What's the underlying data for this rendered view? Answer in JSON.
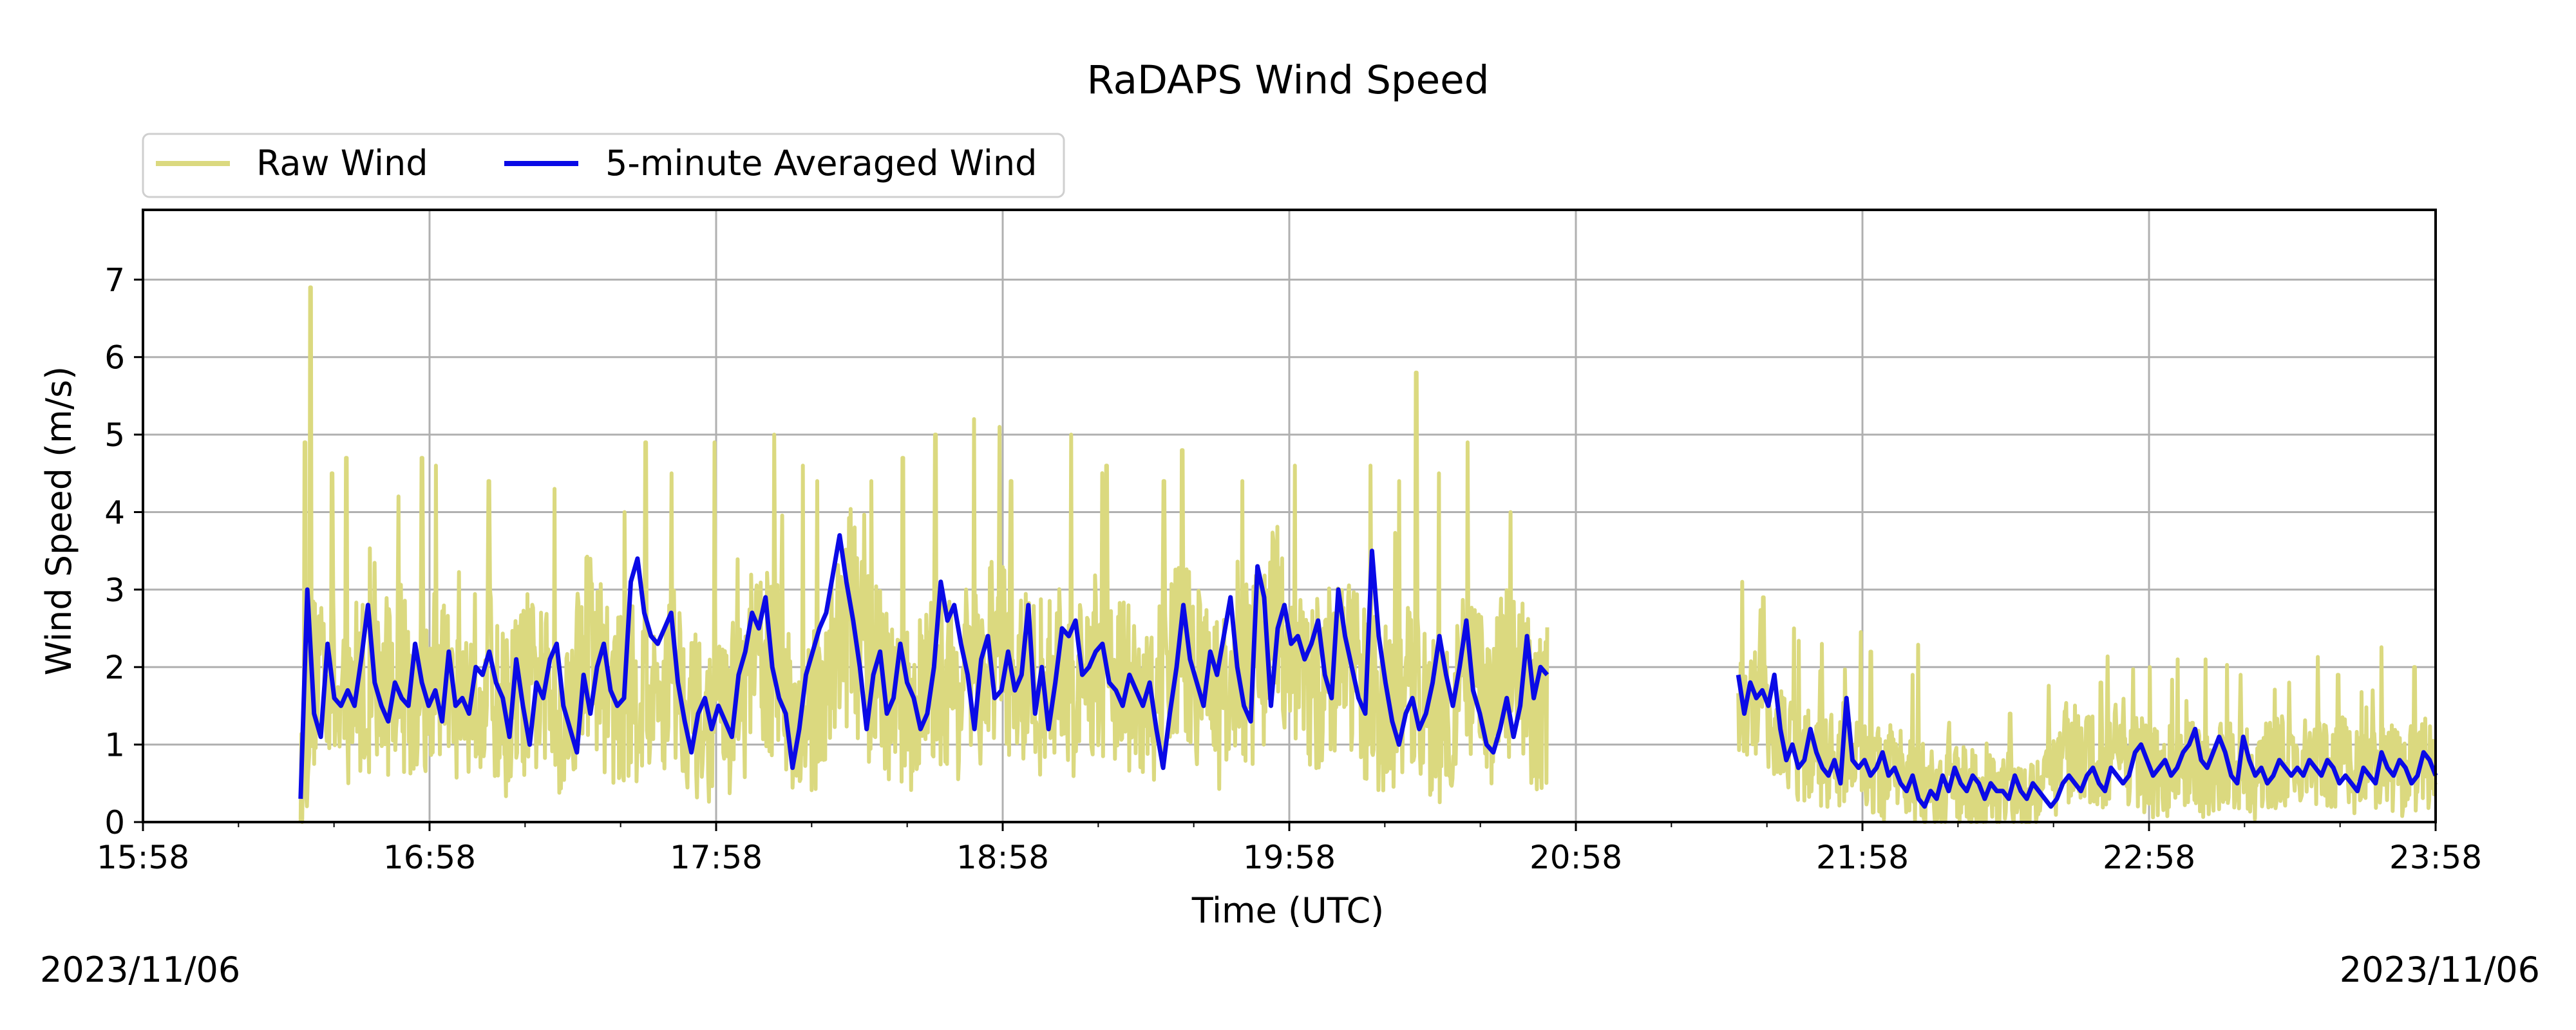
{
  "chart_data": {
    "type": "line",
    "title": "RaDAPS Wind Speed",
    "xlabel": "Time (UTC)",
    "ylabel": "Wind Speed (m/s)",
    "date_left": "2023/11/06",
    "date_right": "2023/11/06",
    "xlim": [
      "15:58",
      "23:58"
    ],
    "ylim": [
      0,
      7.9
    ],
    "x_ticks": [
      "15:58",
      "16:58",
      "17:58",
      "18:58",
      "19:58",
      "20:58",
      "21:58",
      "22:58",
      "23:58"
    ],
    "y_ticks": [
      0,
      1,
      2,
      3,
      4,
      5,
      6,
      7
    ],
    "grid": true,
    "legend_position": "top-left, above plot",
    "colors": {
      "raw": "#dbd97f",
      "avg": "#0a0ae6"
    },
    "series": [
      {
        "name": "Raw Wind",
        "color": "#dbd97f",
        "segments": [
          {
            "start": "16:31",
            "end": "20:52",
            "base": [
              0.3,
              1.6,
              2.2,
              2.0,
              1.3,
              1.6,
              1.9,
              1.5,
              1.7,
              1.8,
              2.0,
              1.7,
              1.6,
              1.5,
              2.0,
              1.8,
              1.7,
              1.6,
              1.9,
              2.0,
              1.5,
              1.4,
              1.6,
              1.8,
              1.7,
              1.6,
              1.4,
              1.3,
              1.9,
              2.4,
              2.2,
              1.8,
              1.6,
              1.5,
              1.7,
              1.6,
              1.4,
              1.8,
              2.0,
              1.7,
              1.4,
              1.2,
              1.3,
              1.4,
              1.5,
              1.6,
              2.0,
              2.2,
              2.0,
              1.9,
              1.5,
              1.0,
              1.3,
              1.8,
              2.0,
              2.5,
              2.7,
              2.3,
              2.0,
              1.8,
              1.6,
              1.3,
              1.5,
              1.6,
              1.7,
              1.9,
              1.8,
              1.7,
              1.6,
              1.8,
              2.0,
              2.2,
              2.0,
              1.9,
              1.8,
              1.7,
              1.8,
              1.9,
              1.8,
              1.6,
              1.8,
              2.0,
              2.1,
              2.0,
              1.8,
              1.5,
              1.4,
              1.6,
              1.9,
              2.0,
              2.2,
              2.0,
              1.8,
              1.6,
              1.5,
              1.6,
              1.8,
              2.0,
              2.1,
              2.4,
              2.6,
              2.2,
              1.9,
              1.7,
              1.8,
              1.9,
              2.2,
              2.0,
              1.8,
              1.6,
              1.5,
              1.4,
              1.5,
              1.7,
              1.6,
              1.4,
              1.3,
              1.5,
              1.7,
              1.8,
              1.6,
              1.5,
              1.7,
              1.9,
              1.8,
              1.6,
              1.3,
              1.6
            ],
            "peaks": [
              [
                0.07,
                6.9
              ],
              [
                0.03,
                4.9
              ],
              [
                0.32,
                4.7
              ],
              [
                0.22,
                4.5
              ],
              [
                0.85,
                4.7
              ],
              [
                0.95,
                4.6
              ],
              [
                1.32,
                4.4
              ],
              [
                1.78,
                4.3
              ],
              [
                2.27,
                4.0
              ],
              [
                2.42,
                4.9
              ],
              [
                2.6,
                4.5
              ],
              [
                2.9,
                4.9
              ],
              [
                3.32,
                5.0
              ],
              [
                3.52,
                4.6
              ],
              [
                3.62,
                4.4
              ],
              [
                4.0,
                4.4
              ],
              [
                4.22,
                4.7
              ],
              [
                4.45,
                5.0
              ],
              [
                4.72,
                5.2
              ],
              [
                4.9,
                5.1
              ],
              [
                4.98,
                4.4
              ],
              [
                5.4,
                5.0
              ],
              [
                5.65,
                4.6
              ],
              [
                6.05,
                4.4
              ],
              [
                6.18,
                4.8
              ],
              [
                6.6,
                4.4
              ],
              [
                6.97,
                4.6
              ],
              [
                7.5,
                4.6
              ],
              [
                7.7,
                4.4
              ],
              [
                7.82,
                5.8
              ],
              [
                7.98,
                4.5
              ],
              [
                8.18,
                4.9
              ],
              [
                8.48,
                4.0
              ],
              [
                8.78,
                3.3
              ]
            ],
            "noise": 1.25
          },
          {
            "start": "21:32",
            "end": "23:58",
            "base": [
              1.3,
              1.6,
              1.5,
              1.3,
              1.0,
              0.8,
              0.9,
              0.8,
              0.7,
              0.8,
              0.9,
              0.7,
              0.6,
              0.7,
              0.5,
              0.5,
              0.4,
              0.3,
              0.4,
              0.5,
              0.4,
              0.5,
              0.4,
              0.3,
              0.4,
              0.5,
              0.6,
              0.8,
              0.9,
              0.8,
              0.7,
              0.8,
              0.9,
              0.8,
              0.7,
              0.6,
              0.7,
              0.8,
              0.7,
              0.6,
              0.7,
              0.8,
              0.7,
              0.6,
              0.7,
              0.8,
              0.7,
              0.7,
              0.8,
              0.7,
              0.8,
              0.7,
              0.6,
              0.8,
              0.7,
              0.6,
              0.7,
              0.8,
              0.6
            ],
            "peaks": [
              [
                0.03,
                3.1
              ],
              [
                0.18,
                2.9
              ],
              [
                0.4,
                2.5
              ],
              [
                0.6,
                2.3
              ],
              [
                0.95,
                2.2
              ],
              [
                1.25,
                1.9
              ],
              [
                1.95,
                1.4
              ],
              [
                2.6,
                1.8
              ],
              [
                2.95,
                2.0
              ],
              [
                3.15,
                2.1
              ],
              [
                3.35,
                2.1
              ],
              [
                3.6,
                1.9
              ],
              [
                3.95,
                1.8
              ],
              [
                4.3,
                1.9
              ],
              [
                4.55,
                1.7
              ],
              [
                4.85,
                2.0
              ]
            ],
            "noise": 0.85
          }
        ]
      },
      {
        "name": "5-minute Averaged Wind",
        "color": "#0a0ae6",
        "segments": [
          {
            "start": "16:31",
            "end": "20:52",
            "base": [
              0.3,
              3.0,
              1.4,
              1.1,
              2.3,
              1.6,
              1.5,
              1.7,
              1.5,
              2.1,
              2.8,
              1.8,
              1.5,
              1.3,
              1.8,
              1.6,
              1.5,
              2.3,
              1.8,
              1.5,
              1.7,
              1.3,
              2.2,
              1.5,
              1.6,
              1.4,
              2.0,
              1.9,
              2.2,
              1.8,
              1.6,
              1.1,
              2.1,
              1.5,
              1.0,
              1.8,
              1.6,
              2.1,
              2.3,
              1.5,
              1.2,
              0.9,
              1.9,
              1.4,
              2.0,
              2.3,
              1.7,
              1.5,
              1.6,
              3.1,
              3.4,
              2.7,
              2.4,
              2.3,
              2.5,
              2.7,
              1.8,
              1.3,
              0.9,
              1.4,
              1.6,
              1.2,
              1.5,
              1.3,
              1.1,
              1.9,
              2.2,
              2.7,
              2.5,
              2.9,
              2.0,
              1.6,
              1.4,
              0.7,
              1.2,
              1.9,
              2.2,
              2.5,
              2.7,
              3.2,
              3.7,
              3.1,
              2.6,
              2.0,
              1.2,
              1.9,
              2.2,
              1.4,
              1.6,
              2.3,
              1.8,
              1.6,
              1.2,
              1.4,
              2.0,
              3.1,
              2.6,
              2.8,
              2.3,
              1.9,
              1.2,
              2.1,
              2.4,
              1.6,
              1.7,
              2.2,
              1.7,
              1.9,
              2.8,
              1.4,
              2.0,
              1.2,
              1.8,
              2.5,
              2.4,
              2.6,
              1.9,
              2.0,
              2.2,
              2.3,
              1.8,
              1.7,
              1.5,
              1.9,
              1.7,
              1.5,
              1.8,
              1.2,
              0.7,
              1.4,
              2.0,
              2.8,
              2.1,
              1.8,
              1.5,
              2.2,
              1.9,
              2.4,
              2.9,
              2.0,
              1.5,
              1.3,
              3.3,
              2.9,
              1.5,
              2.5,
              2.8,
              2.3,
              2.4,
              2.1,
              2.3,
              2.6,
              1.9,
              1.6,
              3.0,
              2.4,
              2.0,
              1.6,
              1.4,
              3.5,
              2.4,
              1.8,
              1.3,
              1.0,
              1.4,
              1.6,
              1.2,
              1.4,
              1.8,
              2.4,
              1.9,
              1.5,
              2.0,
              2.6,
              1.7,
              1.4,
              1.0,
              0.9,
              1.2,
              1.6,
              1.1,
              1.5,
              2.4,
              1.6,
              2.0,
              1.9
            ]
          },
          {
            "start": "21:32",
            "end": "23:58",
            "base": [
              1.9,
              1.4,
              1.8,
              1.6,
              1.7,
              1.5,
              1.9,
              1.2,
              0.8,
              1.0,
              0.7,
              0.8,
              1.2,
              0.9,
              0.7,
              0.6,
              0.8,
              0.5,
              1.6,
              0.8,
              0.7,
              0.8,
              0.6,
              0.7,
              0.9,
              0.6,
              0.7,
              0.5,
              0.4,
              0.6,
              0.3,
              0.2,
              0.4,
              0.3,
              0.6,
              0.4,
              0.7,
              0.5,
              0.4,
              0.6,
              0.5,
              0.3,
              0.5,
              0.4,
              0.4,
              0.3,
              0.6,
              0.4,
              0.3,
              0.5,
              0.4,
              0.3,
              0.2,
              0.3,
              0.5,
              0.6,
              0.5,
              0.4,
              0.6,
              0.7,
              0.5,
              0.4,
              0.7,
              0.6,
              0.5,
              0.6,
              0.9,
              1.0,
              0.8,
              0.6,
              0.7,
              0.8,
              0.6,
              0.7,
              0.9,
              1.0,
              1.2,
              0.8,
              0.7,
              0.9,
              1.1,
              0.9,
              0.6,
              0.5,
              1.1,
              0.8,
              0.6,
              0.7,
              0.5,
              0.6,
              0.8,
              0.7,
              0.6,
              0.7,
              0.6,
              0.8,
              0.7,
              0.6,
              0.8,
              0.7,
              0.5,
              0.6,
              0.5,
              0.4,
              0.7,
              0.6,
              0.5,
              0.9,
              0.7,
              0.6,
              0.8,
              0.7,
              0.5,
              0.6,
              0.9,
              0.8,
              0.6
            ]
          }
        ]
      }
    ]
  }
}
